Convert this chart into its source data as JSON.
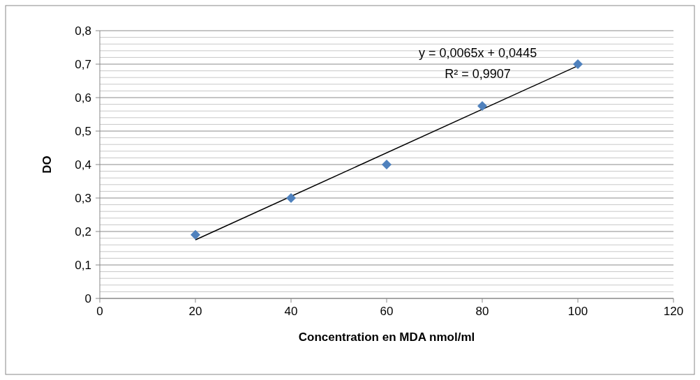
{
  "chart_data": {
    "type": "scatter",
    "xlabel": "Concentration en MDA nmol/ml",
    "ylabel": "DO",
    "x": [
      20,
      40,
      60,
      80,
      100
    ],
    "series": [
      {
        "color": "#4f81bd",
        "marker": "diamond",
        "values": [
          0.19,
          0.3,
          0.4,
          0.575,
          0.7
        ]
      },
      {
        "type": "line",
        "color": "#000000",
        "x": [
          20,
          100
        ],
        "values": [
          0.175,
          0.695
        ],
        "line_style": "solid"
      }
    ],
    "annotations": [
      "y = 0,0065x + 0,0445",
      "R² = 0,9907"
    ],
    "xlim": [
      0,
      120
    ],
    "xticks": [
      0,
      20,
      40,
      60,
      80,
      100,
      120
    ],
    "ylim": [
      0,
      0.8
    ],
    "yticks": [
      0,
      {
        "value": 0.02,
        "label": null
      },
      {
        "value": 0.04,
        "label": null
      },
      {
        "value": 0.06,
        "label": null
      },
      {
        "value": 0.08,
        "label": null
      },
      {
        "value": 0.1,
        "label": "0,1"
      },
      {
        "value": 0.12,
        "label": null
      },
      {
        "value": 0.14,
        "label": null
      },
      {
        "value": 0.16,
        "label": null
      },
      {
        "value": 0.18,
        "label": null
      },
      {
        "value": 0.2,
        "label": "0,2"
      },
      {
        "value": 0.22,
        "label": null
      },
      {
        "value": 0.24,
        "label": null
      },
      {
        "value": 0.26,
        "label": null
      },
      {
        "value": 0.28,
        "label": null
      },
      {
        "value": 0.3,
        "label": "0,3"
      },
      {
        "value": 0.32,
        "label": null
      },
      {
        "value": 0.34,
        "label": null
      },
      {
        "value": 0.36,
        "label": null
      },
      {
        "value": 0.38,
        "label": null
      },
      {
        "value": 0.4,
        "label": "0,4"
      },
      {
        "value": 0.42,
        "label": null
      },
      {
        "value": 0.44,
        "label": null
      },
      {
        "value": 0.46,
        "label": null
      },
      {
        "value": 0.48,
        "label": null
      },
      {
        "value": 0.5,
        "label": "0,5"
      },
      {
        "value": 0.52,
        "label": null
      },
      {
        "value": 0.54,
        "label": null
      },
      {
        "value": 0.56,
        "label": null
      },
      {
        "value": 0.58,
        "label": null
      },
      {
        "value": 0.6,
        "label": "0,6"
      },
      {
        "value": 0.62,
        "label": null
      },
      {
        "value": 0.64,
        "label": null
      },
      {
        "value": 0.66,
        "label": null
      },
      {
        "value": 0.68,
        "label": null
      },
      {
        "value": 0.7,
        "label": "0,7"
      },
      {
        "value": 0.72,
        "label": null
      },
      {
        "value": 0.74,
        "label": null
      },
      {
        "value": 0.76,
        "label": null
      },
      {
        "value": 0.78,
        "label": null
      },
      {
        "value": 0.8,
        "label": "0,8"
      }
    ],
    "grid": "y"
  }
}
